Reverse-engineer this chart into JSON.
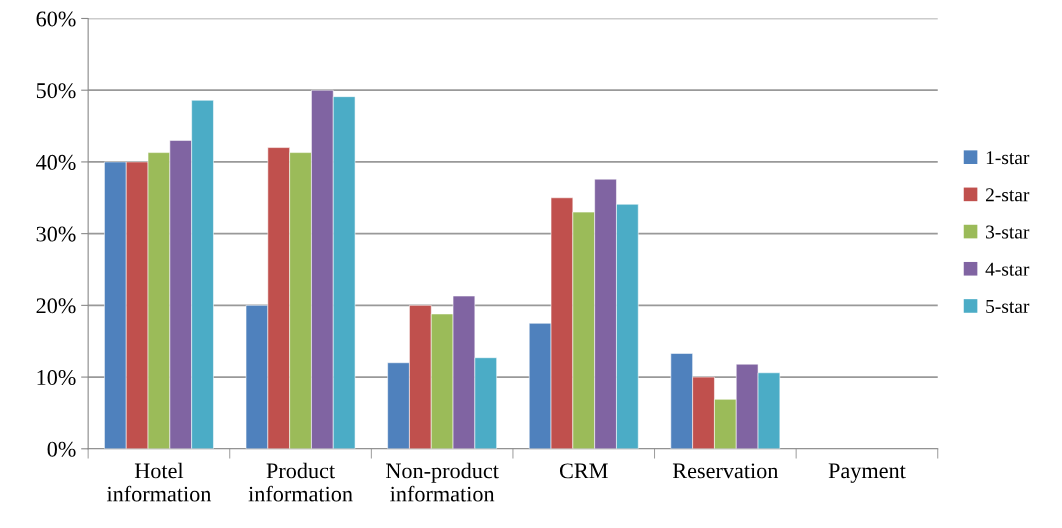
{
  "chart_data": {
    "type": "bar",
    "categories": [
      "Hotel\ninformation",
      "Product\ninformation",
      "Non-product\ninformation",
      "CRM",
      "Reservation",
      "Payment"
    ],
    "series": [
      {
        "name": "1-star",
        "color": "#4f81bd",
        "values": [
          40,
          20,
          12,
          17.5,
          13.3,
          null
        ]
      },
      {
        "name": "2-star",
        "color": "#c0504d",
        "values": [
          40,
          42,
          20,
          35,
          10,
          null
        ]
      },
      {
        "name": "3-star",
        "color": "#9bbb59",
        "values": [
          41.3,
          41.3,
          18.8,
          33,
          6.9,
          null
        ]
      },
      {
        "name": "4-star",
        "color": "#8064a2",
        "values": [
          43,
          50,
          21.3,
          37.6,
          11.8,
          null
        ]
      },
      {
        "name": "5-star",
        "color": "#4bacc6",
        "values": [
          48.6,
          49.1,
          12.7,
          34.1,
          10.6,
          null
        ]
      }
    ],
    "ylim": [
      0,
      60
    ],
    "yticks": [
      {
        "value": 0,
        "label": "0%"
      },
      {
        "value": 10,
        "label": "10%"
      },
      {
        "value": 20,
        "label": "20%"
      },
      {
        "value": 30,
        "label": "30%"
      },
      {
        "value": 40,
        "label": "40%"
      },
      {
        "value": 50,
        "label": "50%"
      },
      {
        "value": 60,
        "label": "60%"
      }
    ],
    "grid": "y",
    "legend": "right"
  }
}
